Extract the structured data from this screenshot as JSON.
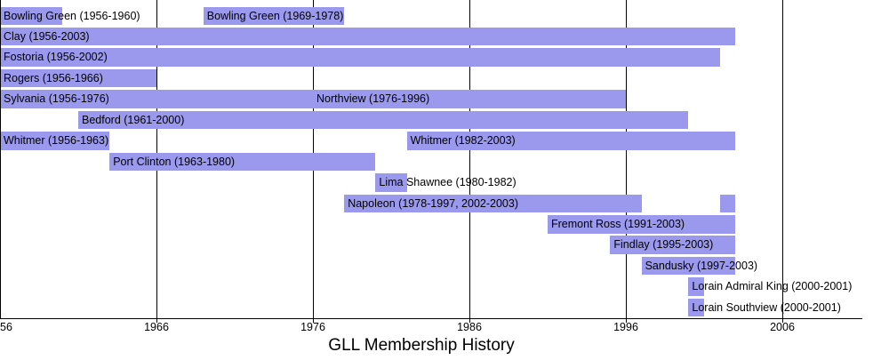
{
  "chart_data": {
    "type": "bar",
    "variant": "gantt-timeline",
    "title": "GLL Membership History",
    "bar_color": "#9a99ee",
    "axis_color": "#000000",
    "text_color": "#000000",
    "grid": true,
    "legend": "none",
    "x_axis": {
      "range_years": [
        1956,
        2011
      ],
      "ticks": [
        {
          "label": "56",
          "year": 1956
        },
        {
          "label": "1966",
          "year": 1966
        },
        {
          "label": "1976",
          "year": 1976
        },
        {
          "label": "1986",
          "year": 1986
        },
        {
          "label": "1996",
          "year": 1996
        },
        {
          "label": "2006",
          "year": 2006
        }
      ]
    },
    "rows": [
      {
        "segments": [
          {
            "label": "Bowling Green (1956-1960)",
            "start": 1956,
            "end": 1960
          },
          {
            "label": "Bowling Green (1969-1978)",
            "start": 1969,
            "end": 1978
          }
        ]
      },
      {
        "segments": [
          {
            "label": "Clay (1956-2003)",
            "start": 1956,
            "end": 2003
          }
        ]
      },
      {
        "segments": [
          {
            "label": "Fostoria (1956-2002)",
            "start": 1956,
            "end": 2002
          }
        ]
      },
      {
        "segments": [
          {
            "label": "Rogers (1956-1966)",
            "start": 1956,
            "end": 1966
          }
        ]
      },
      {
        "segments": [
          {
            "label": "Sylvania (1956-1976)",
            "start": 1956,
            "end": 1976
          },
          {
            "label": "Northview (1976-1996)",
            "start": 1976,
            "end": 1996
          }
        ]
      },
      {
        "segments": [
          {
            "label": "Bedford (1961-2000)",
            "start": 1961,
            "end": 2000
          }
        ]
      },
      {
        "segments": [
          {
            "label": "Whitmer (1956-1963)",
            "start": 1956,
            "end": 1963
          },
          {
            "label": "Whitmer (1982-2003)",
            "start": 1982,
            "end": 2003
          }
        ]
      },
      {
        "segments": [
          {
            "label": "Port Clinton (1963-1980)",
            "start": 1963,
            "end": 1980
          }
        ]
      },
      {
        "segments": [
          {
            "label": "Lima Shawnee (1980-1982)",
            "start": 1980,
            "end": 1982
          }
        ]
      },
      {
        "segments": [
          {
            "label": "Napoleon (1978-1997, 2002-2003)",
            "start": 1978,
            "end": 1997
          },
          {
            "label": "",
            "start": 2002,
            "end": 2003
          }
        ]
      },
      {
        "segments": [
          {
            "label": "Fremont Ross (1991-2003)",
            "start": 1991,
            "end": 2003
          }
        ]
      },
      {
        "segments": [
          {
            "label": "Findlay (1995-2003)",
            "start": 1995,
            "end": 2003
          }
        ]
      },
      {
        "segments": [
          {
            "label": "Sandusky (1997-2003)",
            "start": 1997,
            "end": 2003
          }
        ]
      },
      {
        "segments": [
          {
            "label": "Lorain Admiral King (2000-2001)",
            "start": 2000,
            "end": 2001
          }
        ]
      },
      {
        "segments": [
          {
            "label": "Lorain Southview (2000-2001)",
            "start": 2000,
            "end": 2001
          }
        ]
      }
    ]
  }
}
